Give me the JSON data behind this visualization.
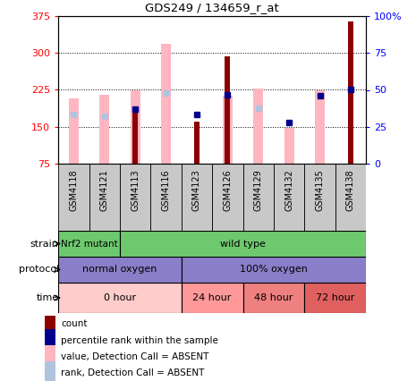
{
  "title": "GDS249 / 134659_r_at",
  "samples": [
    "GSM4118",
    "GSM4121",
    "GSM4113",
    "GSM4116",
    "GSM4123",
    "GSM4126",
    "GSM4129",
    "GSM4132",
    "GSM4135",
    "GSM4138"
  ],
  "count_values": [
    null,
    null,
    185,
    null,
    160,
    293,
    null,
    null,
    null,
    365
  ],
  "absent_value_bars": [
    207,
    215,
    225,
    318,
    null,
    213,
    228,
    148,
    225,
    null
  ],
  "rank_blue_dots": [
    null,
    null,
    185,
    null,
    175,
    215,
    null,
    158,
    213,
    225
  ],
  "rank_absent_dots": [
    175,
    172,
    null,
    218,
    null,
    null,
    188,
    null,
    null,
    null
  ],
  "ylim": [
    75,
    375
  ],
  "yticks": [
    75,
    150,
    225,
    300,
    375
  ],
  "y2ticks": [
    0,
    25,
    50,
    75,
    100
  ],
  "y2labels": [
    "0",
    "25",
    "50",
    "75",
    "100%"
  ],
  "count_color": "#8B0000",
  "absent_bar_color": "#FFB6C1",
  "rank_blue_color": "#00008B",
  "rank_absent_color": "#B0C4DE",
  "xticklabel_bg": "#C8C8C8",
  "strain_nrf2_color": "#6EC96E",
  "strain_wild_color": "#6EC96E",
  "protocol_color": "#8B7EC8",
  "time_0_color": "#FFCCCC",
  "time_24_color": "#FF9999",
  "time_48_color": "#EE8080",
  "time_72_color": "#E06060",
  "legend_items": [
    {
      "label": "count",
      "color": "#8B0000"
    },
    {
      "label": "percentile rank within the sample",
      "color": "#00008B"
    },
    {
      "label": "value, Detection Call = ABSENT",
      "color": "#FFB6C1"
    },
    {
      "label": "rank, Detection Call = ABSENT",
      "color": "#B0C4DE"
    }
  ]
}
